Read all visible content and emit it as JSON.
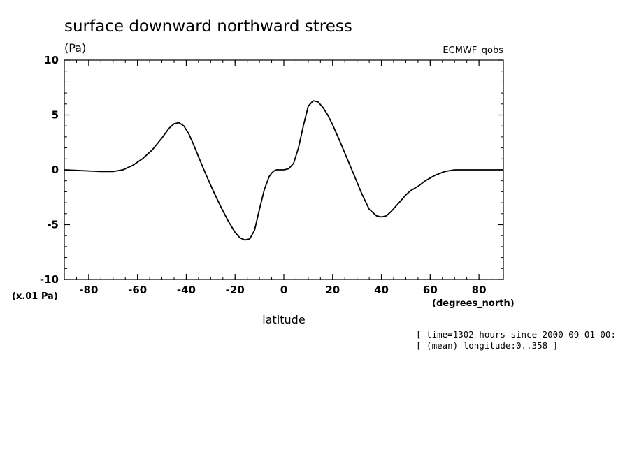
{
  "chart_data": {
    "type": "line",
    "title": "surface downward northward stress",
    "units": "(Pa)",
    "dataset_label": "ECMWF_qobs",
    "xlabel": "latitude",
    "x_units": "(degrees_north)",
    "y_scale_note": "(x.01 Pa)",
    "xlim": [
      -90,
      90
    ],
    "ylim": [
      -10,
      10
    ],
    "x_ticks": [
      "-80",
      "-60",
      "-40",
      "-20",
      "0",
      "20",
      "40",
      "60",
      "80"
    ],
    "y_ticks": [
      "10",
      "5",
      "0",
      "-5",
      "-10"
    ],
    "x_tick_values": [
      -80,
      -60,
      -40,
      -20,
      0,
      20,
      40,
      60,
      80
    ],
    "y_tick_values": [
      10,
      5,
      0,
      -5,
      -10
    ],
    "grid": false,
    "series": [
      {
        "x": [
          -90,
          -85,
          -80,
          -75,
          -70,
          -66,
          -62,
          -58,
          -54,
          -50,
          -47,
          -45,
          -43,
          -41,
          -39,
          -37,
          -35,
          -32,
          -29,
          -26,
          -23,
          -20,
          -18,
          -16,
          -14,
          -12,
          -10,
          -8,
          -6,
          -5,
          -4,
          -3,
          -2,
          0,
          2,
          4,
          6,
          8,
          10,
          12,
          14,
          16,
          18,
          20,
          23,
          26,
          29,
          32,
          35,
          38,
          40,
          42,
          44,
          46,
          48,
          50,
          52,
          55,
          58,
          62,
          66,
          70,
          74,
          78,
          82,
          86,
          90
        ],
        "values": [
          0,
          -0.05,
          -0.1,
          -0.15,
          -0.15,
          0,
          0.4,
          1.0,
          1.8,
          2.9,
          3.8,
          4.2,
          4.3,
          4.0,
          3.3,
          2.3,
          1.2,
          -0.4,
          -1.9,
          -3.3,
          -4.6,
          -5.7,
          -6.2,
          -6.4,
          -6.3,
          -5.5,
          -3.6,
          -1.8,
          -0.6,
          -0.3,
          -0.1,
          0,
          0,
          0,
          0.1,
          0.6,
          2.0,
          4.0,
          5.8,
          6.3,
          6.2,
          5.7,
          5.0,
          4.1,
          2.6,
          1.0,
          -0.6,
          -2.2,
          -3.6,
          -4.2,
          -4.3,
          -4.2,
          -3.8,
          -3.3,
          -2.8,
          -2.3,
          -1.9,
          -1.5,
          -1.0,
          -0.5,
          -0.15,
          0,
          0,
          0,
          0,
          0,
          0
        ]
      }
    ]
  },
  "footer": {
    "line1": "[ time=1302 hours since 2000-09-01 00:",
    "line2": "[ (mean) longitude:0..358 ]"
  }
}
